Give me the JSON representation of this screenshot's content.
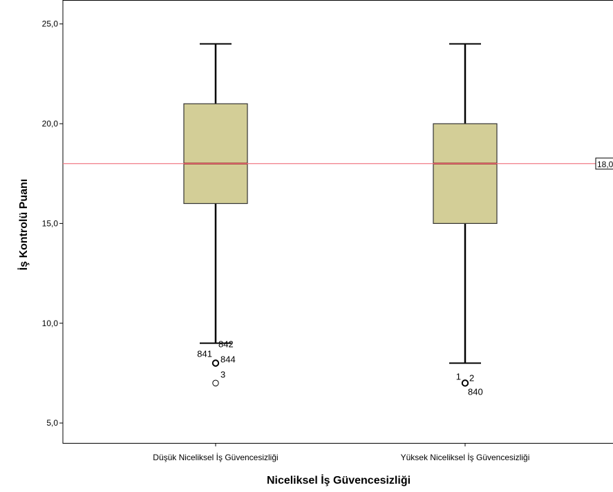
{
  "chart_data": {
    "type": "boxplot",
    "xlabel": "Niceliksel İş Güvencesizliği",
    "ylabel": "İş Kontrolü Puanı",
    "ylim": [
      4.0,
      26.2
    ],
    "yticks": [
      5,
      10,
      15,
      20,
      25
    ],
    "ytick_labels": [
      "5,0",
      "10,0",
      "15,0",
      "20,0",
      "25,0"
    ],
    "categories": [
      "Düşük Niceliksel İş Güvencesizliği",
      "Yüksek Niceliksel İş Güvencesizliği"
    ],
    "boxes": [
      {
        "category": "Düşük Niceliksel İş Güvencesizliği",
        "whisker_low": 9,
        "q1": 16,
        "median": 18,
        "q3": 21,
        "whisker_high": 24,
        "outliers": [
          {
            "value": 8,
            "labels": [
              "841",
              "844"
            ]
          },
          {
            "value": 7,
            "labels": [
              "3"
            ]
          }
        ],
        "whisker_labels": [
          "842"
        ]
      },
      {
        "category": "Yüksek Niceliksel İş Güvencesizliği",
        "whisker_low": 8,
        "q1": 15,
        "median": 18,
        "q3": 20,
        "whisker_high": 24,
        "outliers": [
          {
            "value": 7,
            "labels": [
              "1",
              "2",
              "840"
            ]
          }
        ],
        "whisker_labels": []
      }
    ],
    "reference_line": {
      "value": 18,
      "label": "18,0"
    },
    "grid": false,
    "box_color": "#d3ce97",
    "median_color": "#8b1a1a",
    "reference_color": "#f07a85"
  }
}
